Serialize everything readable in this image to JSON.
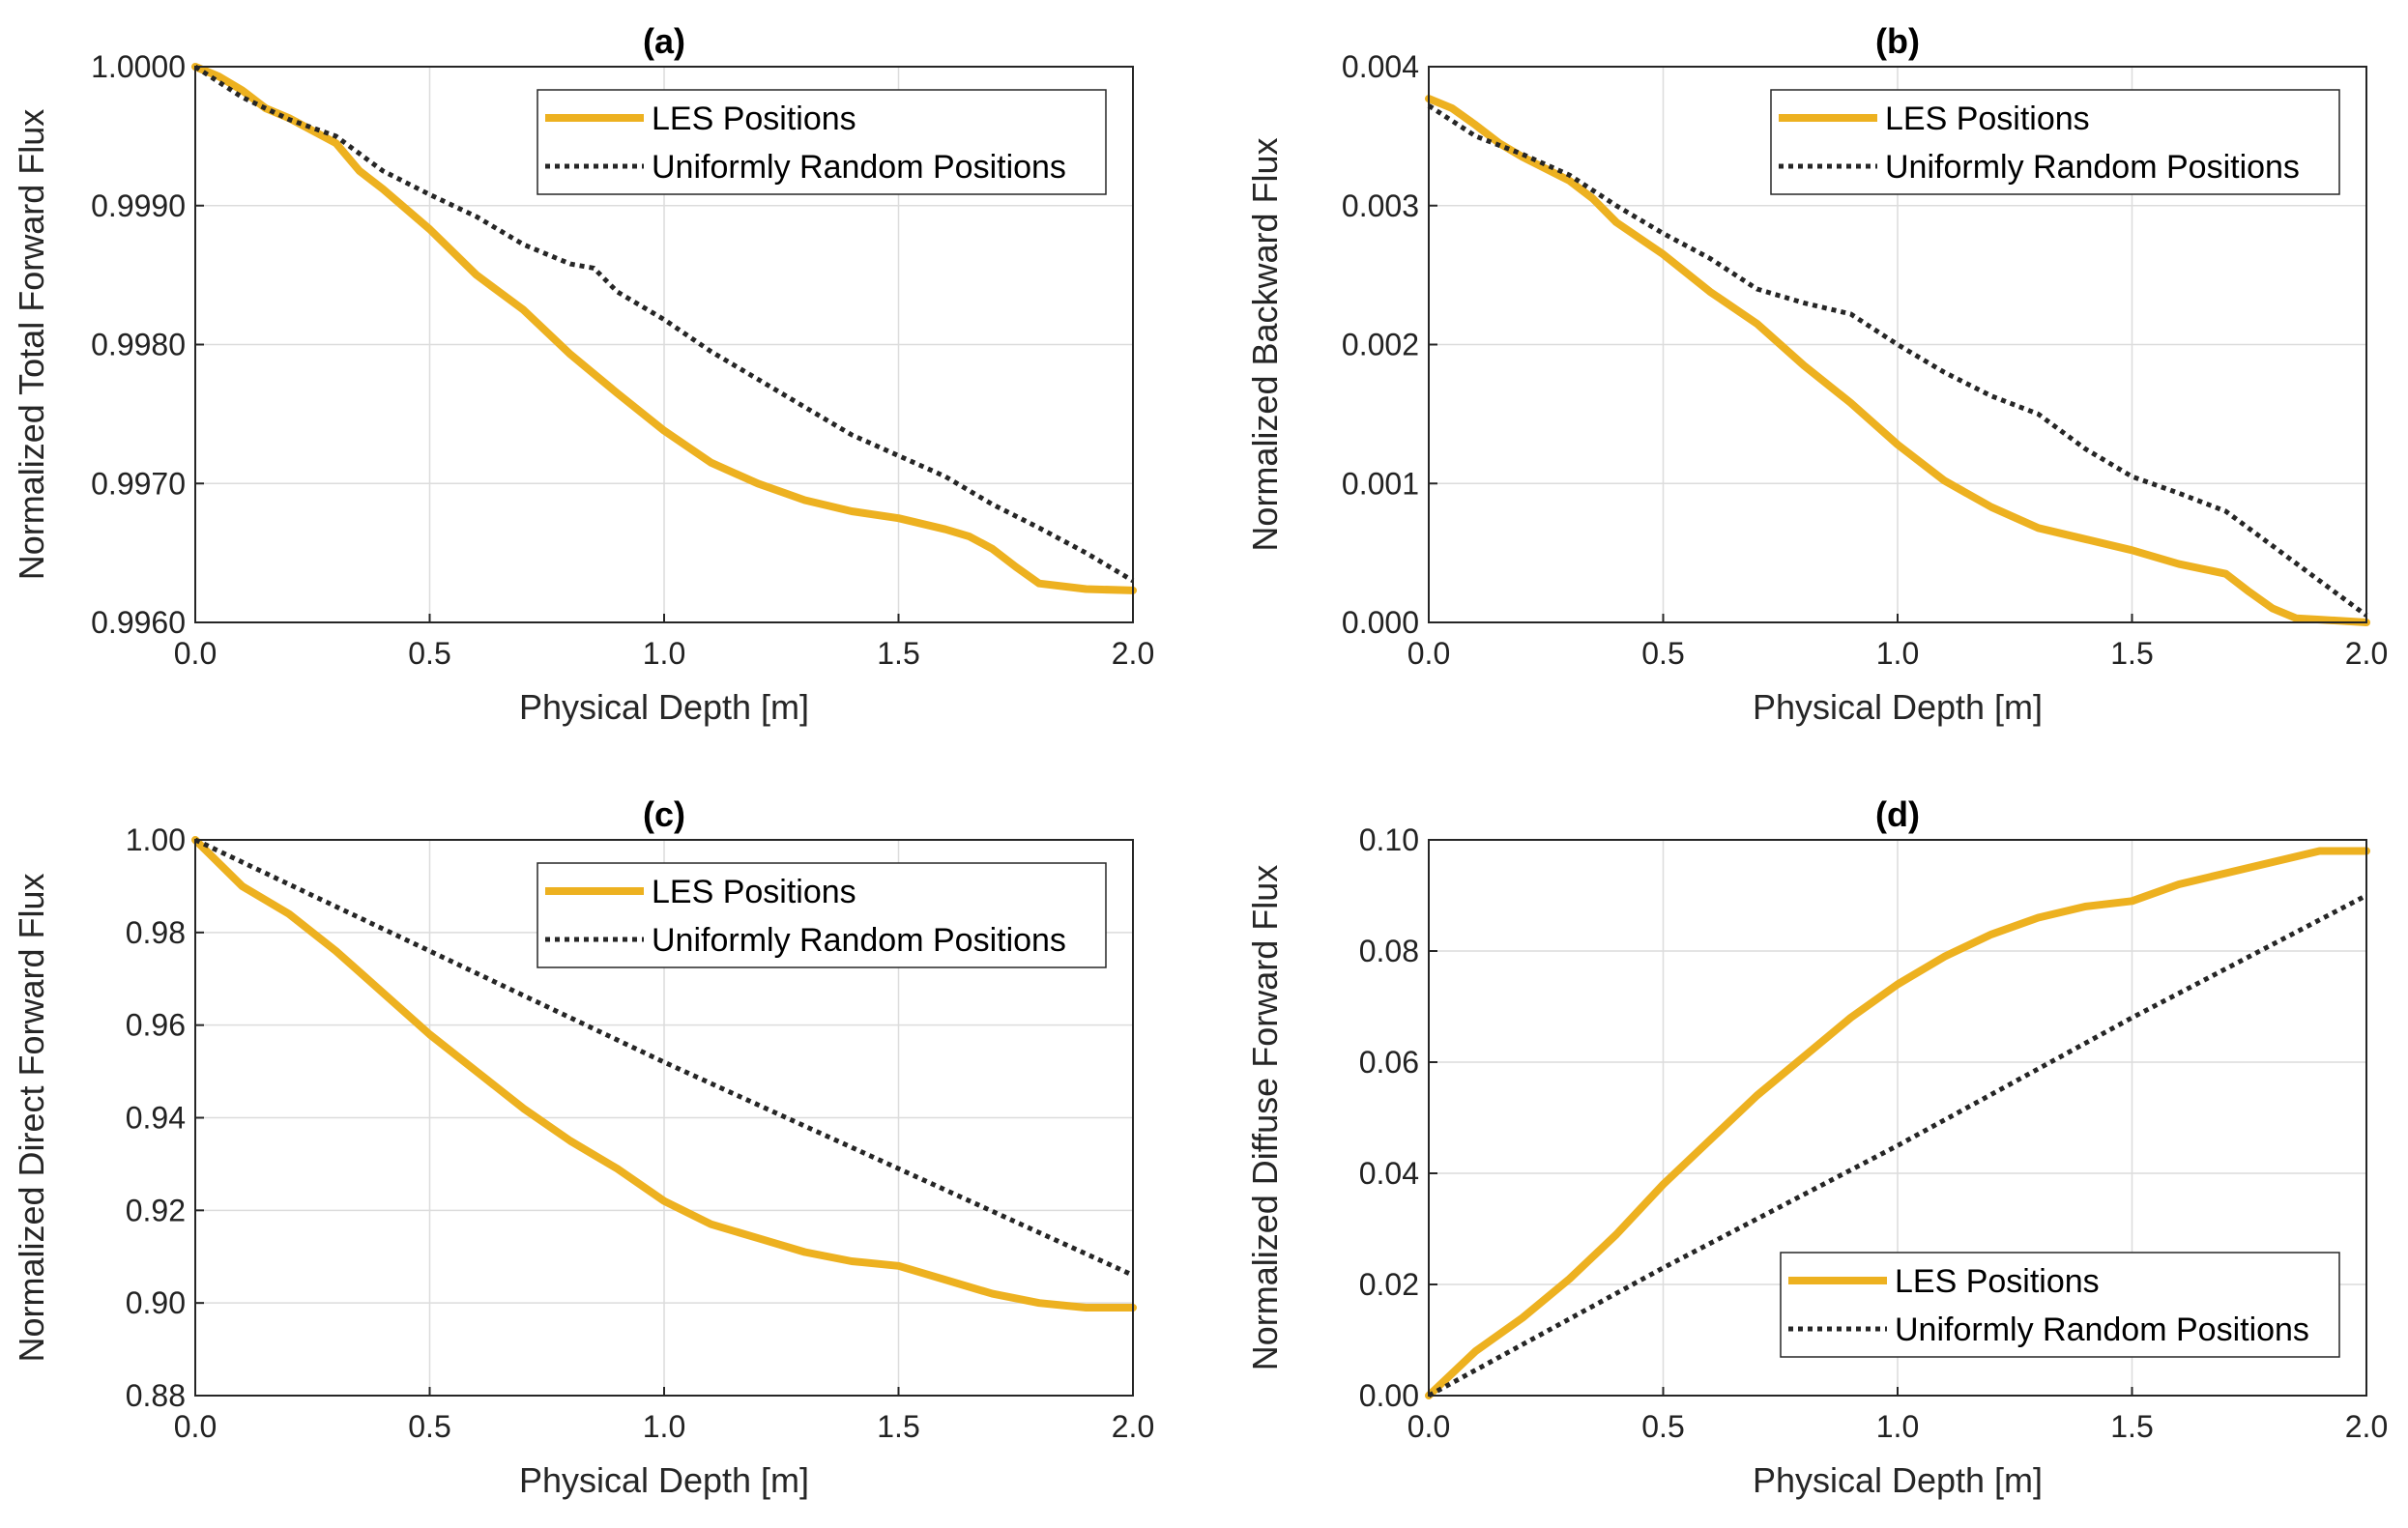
{
  "colors": {
    "les": "#EDB120",
    "uniform": "#262626"
  },
  "chart_data": [
    {
      "type": "line",
      "title": "(a)",
      "xlabel": "Physical Depth [m]",
      "ylabel": "Normalized Total Forward Flux",
      "xlim": [
        0,
        2
      ],
      "ylim": [
        0.996,
        1.0
      ],
      "xticks": [
        0,
        0.5,
        1,
        1.5,
        2
      ],
      "xtick_labels": [
        "0.0",
        "0.5",
        "1.0",
        "1.5",
        "2.0"
      ],
      "yticks": [
        0.996,
        0.997,
        0.998,
        0.999,
        1.0
      ],
      "ytick_labels": [
        "0.9960",
        "0.9970",
        "0.9980",
        "0.9990",
        "1.0000"
      ],
      "legend_position": "top-right",
      "series": [
        {
          "name": "LES Positions",
          "style": "solid",
          "x": [
            0,
            0.05,
            0.1,
            0.15,
            0.2,
            0.3,
            0.35,
            0.4,
            0.5,
            0.6,
            0.7,
            0.8,
            0.9,
            1.0,
            1.1,
            1.2,
            1.3,
            1.4,
            1.5,
            1.6,
            1.65,
            1.7,
            1.75,
            1.8,
            1.9,
            2.0
          ],
          "y": [
            1.0,
            0.99993,
            0.99983,
            0.9997,
            0.99963,
            0.99945,
            0.99925,
            0.99912,
            0.99883,
            0.9985,
            0.99825,
            0.99793,
            0.99765,
            0.99738,
            0.99715,
            0.997,
            0.99688,
            0.9968,
            0.99675,
            0.99667,
            0.99662,
            0.99653,
            0.9964,
            0.99628,
            0.99624,
            0.99623
          ]
        },
        {
          "name": "Uniformly Random Positions",
          "style": "dotted",
          "x": [
            0,
            0.1,
            0.2,
            0.3,
            0.4,
            0.5,
            0.6,
            0.7,
            0.8,
            0.85,
            0.9,
            1.0,
            1.1,
            1.2,
            1.3,
            1.4,
            1.5,
            1.6,
            1.7,
            1.8,
            1.9,
            2.0
          ],
          "y": [
            1.0,
            0.99978,
            0.99962,
            0.9995,
            0.99925,
            0.99908,
            0.99892,
            0.99872,
            0.99858,
            0.99855,
            0.99838,
            0.99818,
            0.99795,
            0.99775,
            0.99755,
            0.99735,
            0.9972,
            0.99705,
            0.99685,
            0.99668,
            0.9965,
            0.9963
          ]
        }
      ]
    },
    {
      "type": "line",
      "title": "(b)",
      "xlabel": "Physical Depth [m]",
      "ylabel": "Normalized Backward Flux",
      "xlim": [
        0,
        2
      ],
      "ylim": [
        0,
        0.004
      ],
      "xticks": [
        0,
        0.5,
        1,
        1.5,
        2
      ],
      "xtick_labels": [
        "0.0",
        "0.5",
        "1.0",
        "1.5",
        "2.0"
      ],
      "yticks": [
        0,
        0.001,
        0.002,
        0.003,
        0.004
      ],
      "ytick_labels": [
        "0.000",
        "0.001",
        "0.002",
        "0.003",
        "0.004"
      ],
      "legend_position": "top-right",
      "series": [
        {
          "name": "LES Positions",
          "style": "solid",
          "x": [
            0,
            0.05,
            0.1,
            0.15,
            0.2,
            0.3,
            0.35,
            0.4,
            0.5,
            0.6,
            0.7,
            0.8,
            0.9,
            1.0,
            1.1,
            1.2,
            1.3,
            1.4,
            1.5,
            1.6,
            1.7,
            1.75,
            1.8,
            1.85,
            1.9,
            2.0
          ],
          "y": [
            0.00377,
            0.0037,
            0.00358,
            0.00345,
            0.00335,
            0.00318,
            0.00305,
            0.00288,
            0.00265,
            0.00238,
            0.00215,
            0.00185,
            0.00158,
            0.00128,
            0.00102,
            0.00083,
            0.00068,
            0.0006,
            0.00052,
            0.00042,
            0.00035,
            0.00022,
            0.0001,
            3e-05,
            2e-05,
            0.0
          ]
        },
        {
          "name": "Uniformly Random Positions",
          "style": "dotted",
          "x": [
            0,
            0.1,
            0.2,
            0.3,
            0.4,
            0.5,
            0.6,
            0.7,
            0.8,
            0.9,
            1.0,
            1.1,
            1.2,
            1.3,
            1.4,
            1.5,
            1.6,
            1.7,
            1.8,
            1.9,
            2.0
          ],
          "y": [
            0.00372,
            0.0035,
            0.00337,
            0.00322,
            0.003,
            0.0028,
            0.00262,
            0.0024,
            0.0023,
            0.00222,
            0.002,
            0.0018,
            0.00163,
            0.0015,
            0.00125,
            0.00105,
            0.00093,
            0.0008,
            0.00055,
            0.0003,
            5e-05
          ]
        }
      ]
    },
    {
      "type": "line",
      "title": "(c)",
      "xlabel": "Physical Depth [m]",
      "ylabel": "Normalized Direct Forward Flux",
      "xlim": [
        0,
        2
      ],
      "ylim": [
        0.88,
        1.0
      ],
      "xticks": [
        0,
        0.5,
        1,
        1.5,
        2
      ],
      "xtick_labels": [
        "0.0",
        "0.5",
        "1.0",
        "1.5",
        "2.0"
      ],
      "yticks": [
        0.88,
        0.9,
        0.92,
        0.94,
        0.96,
        0.98,
        1.0
      ],
      "ytick_labels": [
        "0.88",
        "0.90",
        "0.92",
        "0.94",
        "0.96",
        "0.98",
        "1.00"
      ],
      "legend_position": "top-right",
      "series": [
        {
          "name": "LES Positions",
          "style": "solid",
          "x": [
            0,
            0.1,
            0.2,
            0.3,
            0.4,
            0.5,
            0.6,
            0.7,
            0.8,
            0.9,
            1.0,
            1.1,
            1.2,
            1.3,
            1.4,
            1.5,
            1.6,
            1.7,
            1.8,
            1.9,
            2.0
          ],
          "y": [
            1.0,
            0.99,
            0.984,
            0.976,
            0.967,
            0.958,
            0.95,
            0.942,
            0.935,
            0.929,
            0.922,
            0.917,
            0.914,
            0.911,
            0.909,
            0.908,
            0.905,
            0.902,
            0.9,
            0.899,
            0.899
          ]
        },
        {
          "name": "Uniformly Random Positions",
          "style": "dotted",
          "x": [
            0,
            0.5,
            1.0,
            1.5,
            2.0
          ],
          "y": [
            1.0,
            0.976,
            0.952,
            0.929,
            0.906
          ]
        }
      ]
    },
    {
      "type": "line",
      "title": "(d)",
      "xlabel": "Physical Depth [m]",
      "ylabel": "Normalized Diffuse Forward Flux",
      "xlim": [
        0,
        2
      ],
      "ylim": [
        0,
        0.1
      ],
      "xticks": [
        0,
        0.5,
        1,
        1.5,
        2
      ],
      "xtick_labels": [
        "0.0",
        "0.5",
        "1.0",
        "1.5",
        "2.0"
      ],
      "yticks": [
        0,
        0.02,
        0.04,
        0.06,
        0.08,
        0.1
      ],
      "ytick_labels": [
        "0.00",
        "0.02",
        "0.04",
        "0.06",
        "0.08",
        "0.10"
      ],
      "legend_position": "bottom-right",
      "series": [
        {
          "name": "LES Positions",
          "style": "solid",
          "x": [
            0,
            0.1,
            0.2,
            0.3,
            0.4,
            0.5,
            0.6,
            0.7,
            0.8,
            0.9,
            1.0,
            1.1,
            1.2,
            1.3,
            1.4,
            1.5,
            1.6,
            1.7,
            1.8,
            1.9,
            2.0
          ],
          "y": [
            0.0,
            0.008,
            0.014,
            0.021,
            0.029,
            0.038,
            0.046,
            0.054,
            0.061,
            0.068,
            0.074,
            0.079,
            0.083,
            0.086,
            0.088,
            0.089,
            0.092,
            0.094,
            0.096,
            0.098,
            0.098
          ]
        },
        {
          "name": "Uniformly Random Positions",
          "style": "dotted",
          "x": [
            0,
            0.5,
            1.0,
            1.5,
            2.0
          ],
          "y": [
            0.0,
            0.023,
            0.045,
            0.068,
            0.09
          ]
        }
      ]
    }
  ]
}
